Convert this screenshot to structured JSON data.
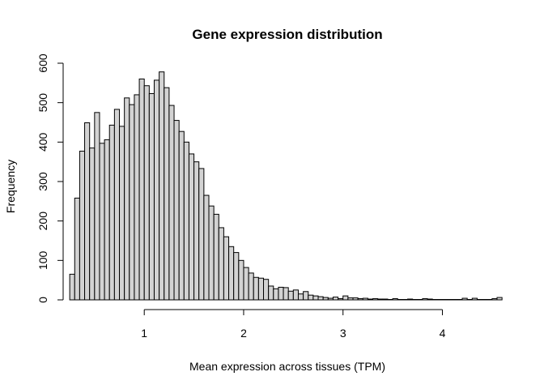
{
  "chart_data": {
    "type": "bar",
    "title": "Gene expression distribution",
    "xlabel": "Mean expression across tissues (TPM)",
    "ylabel": "Frequency",
    "xlim": [
      0.2,
      4.55
    ],
    "ylim": [
      0,
      600
    ],
    "x_ticks": [
      1,
      2,
      3,
      4
    ],
    "y_ticks": [
      0,
      100,
      200,
      300,
      400,
      500,
      600
    ],
    "bin_start": 0.25,
    "bin_width": 0.05,
    "values": [
      65,
      258,
      377,
      449,
      385,
      475,
      397,
      406,
      443,
      483,
      440,
      512,
      495,
      520,
      560,
      543,
      523,
      557,
      578,
      538,
      493,
      455,
      427,
      400,
      370,
      350,
      333,
      265,
      238,
      217,
      183,
      160,
      135,
      120,
      100,
      82,
      68,
      57,
      55,
      52,
      35,
      28,
      32,
      31,
      22,
      25,
      15,
      21,
      12,
      10,
      8,
      6,
      4,
      7,
      3,
      10,
      5,
      5,
      3,
      4,
      2,
      3,
      2,
      2,
      1,
      3,
      1,
      1,
      2,
      1,
      1,
      3,
      2,
      1,
      1,
      1,
      1,
      1,
      1,
      4,
      1,
      4,
      1,
      1,
      1,
      3,
      6
    ],
    "grid": false,
    "bar_fill": "#d3d3d3",
    "bar_stroke": "#000000"
  }
}
